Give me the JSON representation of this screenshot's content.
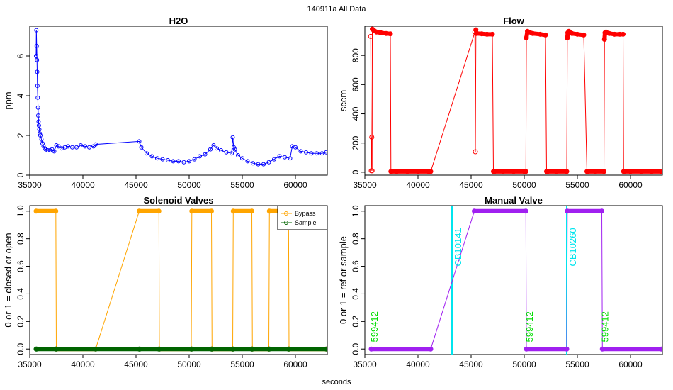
{
  "figure": {
    "super_title": "140911a   All Data",
    "xlabel": "seconds"
  },
  "colors": {
    "h2o": "#0000ff",
    "flow": "#ff0000",
    "bypass": "#ffa500",
    "sample": "#006400",
    "manual": "#a020f0",
    "label_green": "#00dd00",
    "label_cyan": "#00e5ee"
  },
  "chart_data": [
    {
      "id": "h2o",
      "type": "scatter",
      "title": "H2O",
      "xlabel": "",
      "ylabel": "ppm",
      "xlim": [
        35000,
        63000
      ],
      "ylim": [
        0,
        7.5
      ],
      "xticks": [
        35000,
        40000,
        45000,
        50000,
        55000,
        60000
      ],
      "yticks": [
        0,
        2,
        4,
        6
      ],
      "series": [
        {
          "name": "H2O",
          "x": [
            35600,
            35620,
            35650,
            35680,
            35700,
            35720,
            35750,
            35780,
            35800,
            35830,
            35860,
            35900,
            35950,
            36000,
            36100,
            36200,
            36300,
            36400,
            36500,
            36700,
            36900,
            37100,
            37300,
            37500,
            37700,
            38000,
            38300,
            38600,
            39000,
            39400,
            39800,
            40200,
            40600,
            41000,
            41200,
            45300,
            45500,
            46000,
            46500,
            47000,
            47500,
            48000,
            48500,
            49000,
            49500,
            50000,
            50500,
            51000,
            51500,
            52000,
            52300,
            52600,
            53000,
            53500,
            54000,
            54100,
            54200,
            54300,
            54600,
            55000,
            55500,
            56000,
            56500,
            57000,
            57500,
            58000,
            58500,
            59000,
            59500,
            59700,
            60000,
            60500,
            61000,
            61500,
            62000,
            62500,
            62900
          ],
          "values": [
            6.0,
            7.3,
            6.5,
            5.8,
            5.2,
            4.5,
            3.9,
            3.4,
            3.0,
            2.7,
            2.5,
            2.3,
            2.1,
            2.0,
            1.8,
            1.6,
            1.45,
            1.35,
            1.3,
            1.25,
            1.25,
            1.3,
            1.2,
            1.5,
            1.45,
            1.35,
            1.4,
            1.45,
            1.4,
            1.4,
            1.5,
            1.45,
            1.4,
            1.45,
            1.55,
            1.7,
            1.4,
            1.1,
            0.95,
            0.85,
            0.8,
            0.75,
            0.7,
            0.7,
            0.65,
            0.7,
            0.8,
            0.95,
            1.05,
            1.3,
            1.5,
            1.35,
            1.25,
            1.15,
            1.1,
            1.9,
            1.4,
            1.3,
            1.0,
            0.85,
            0.7,
            0.6,
            0.55,
            0.55,
            0.65,
            0.8,
            0.95,
            0.9,
            0.85,
            1.45,
            1.4,
            1.2,
            1.15,
            1.1,
            1.1,
            1.1,
            1.15
          ]
        }
      ]
    },
    {
      "id": "flow",
      "type": "line",
      "title": "Flow",
      "xlabel": "",
      "ylabel": "sccm",
      "xlim": [
        35000,
        63000
      ],
      "ylim": [
        -20,
        1000
      ],
      "xticks": [
        35000,
        40000,
        45000,
        50000,
        55000,
        60000
      ],
      "yticks": [
        0,
        200,
        400,
        600,
        800
      ],
      "series": [
        {
          "name": "Flow",
          "x": [
            35550,
            35600,
            35650,
            35680,
            35700,
            35800,
            36100,
            36500,
            37000,
            37400,
            37450,
            37500,
            38000,
            39000,
            40000,
            41000,
            41200,
            45350,
            45400,
            45450,
            45500,
            46000,
            46500,
            47000,
            47100,
            47150,
            47200,
            48000,
            49000,
            50000,
            50150,
            50200,
            50300,
            50800,
            51500,
            52000,
            52100,
            52150,
            52200,
            53000,
            54000,
            54050,
            54100,
            54200,
            54500,
            55000,
            55600,
            55900,
            55950,
            56000,
            56700,
            57500,
            57550,
            57600,
            57700,
            58000,
            58500,
            59000,
            59300,
            59350,
            59400,
            60000,
            61000,
            62000,
            62900
          ],
          "values": [
            930,
            10,
            240,
            10,
            980,
            975,
            960,
            955,
            950,
            948,
            5,
            5,
            5,
            5,
            5,
            5,
            5,
            960,
            140,
            975,
            950,
            948,
            945,
            945,
            5,
            5,
            5,
            5,
            5,
            5,
            5,
            920,
            965,
            950,
            945,
            940,
            5,
            5,
            5,
            5,
            5,
            920,
            955,
            965,
            950,
            945,
            940,
            5,
            5,
            5,
            5,
            5,
            910,
            955,
            960,
            950,
            945,
            945,
            945,
            5,
            5,
            5,
            5,
            5,
            5
          ]
        }
      ]
    },
    {
      "id": "solenoid",
      "type": "line",
      "title": "Solenoid Valves",
      "xlabel": "",
      "ylabel": "0 or 1 = closed or open",
      "xlim": [
        35000,
        63000
      ],
      "ylim": [
        -0.04,
        1.04
      ],
      "xticks": [
        35000,
        40000,
        45000,
        50000,
        55000,
        60000
      ],
      "yticks": [
        0.0,
        0.2,
        0.4,
        0.6,
        0.8,
        1.0
      ],
      "legend": {
        "position": "top-right",
        "entries": [
          "Bypass",
          "Sample"
        ]
      },
      "series": [
        {
          "name": "Bypass",
          "x": [
            35600,
            37450,
            37500,
            41200,
            45300,
            47150,
            47200,
            50200,
            50250,
            52100,
            52150,
            54100,
            54150,
            55900,
            55950,
            57500,
            57550,
            59350,
            59400,
            62900
          ],
          "values": [
            1,
            1,
            0,
            0,
            1,
            1,
            0,
            0,
            1,
            1,
            0,
            0,
            1,
            1,
            0,
            0,
            1,
            1,
            0,
            0
          ]
        },
        {
          "name": "Sample",
          "x": [
            35600,
            35650,
            37450,
            37500,
            41200,
            45300,
            45350,
            47150,
            47200,
            50200,
            50250,
            52100,
            52150,
            54100,
            54150,
            55900,
            55950,
            57500,
            57550,
            59350,
            59400,
            62900
          ],
          "values": [
            0,
            0,
            0,
            0,
            0,
            0,
            0,
            0,
            0,
            0,
            0,
            0,
            0,
            0,
            0,
            0,
            0,
            0,
            0,
            0,
            0,
            0
          ]
        }
      ]
    },
    {
      "id": "manual",
      "type": "line",
      "title": "Manual Valve",
      "xlabel": "",
      "ylabel": "0 or 1 = ref or sample",
      "xlim": [
        35000,
        63000
      ],
      "ylim": [
        -0.04,
        1.04
      ],
      "xticks": [
        35000,
        40000,
        45000,
        50000,
        55000,
        60000
      ],
      "yticks": [
        0.0,
        0.2,
        0.4,
        0.6,
        0.8,
        1.0
      ],
      "series": [
        {
          "name": "Manual",
          "x": [
            35600,
            41200,
            45300,
            50150,
            50200,
            54000,
            54050,
            57300,
            57350,
            62900
          ],
          "values": [
            0,
            0,
            1,
            1,
            0,
            0,
            1,
            1,
            0,
            0
          ]
        }
      ],
      "vlines": [
        {
          "x": 43200,
          "label": "CB10141"
        },
        {
          "x": 54000,
          "label": "CB10260"
        }
      ],
      "annotations": [
        {
          "x": 35800,
          "y": 0.05,
          "label": "599412"
        },
        {
          "x": 50400,
          "y": 0.05,
          "label": "599412"
        },
        {
          "x": 57500,
          "y": 0.05,
          "label": "599412"
        }
      ]
    }
  ]
}
